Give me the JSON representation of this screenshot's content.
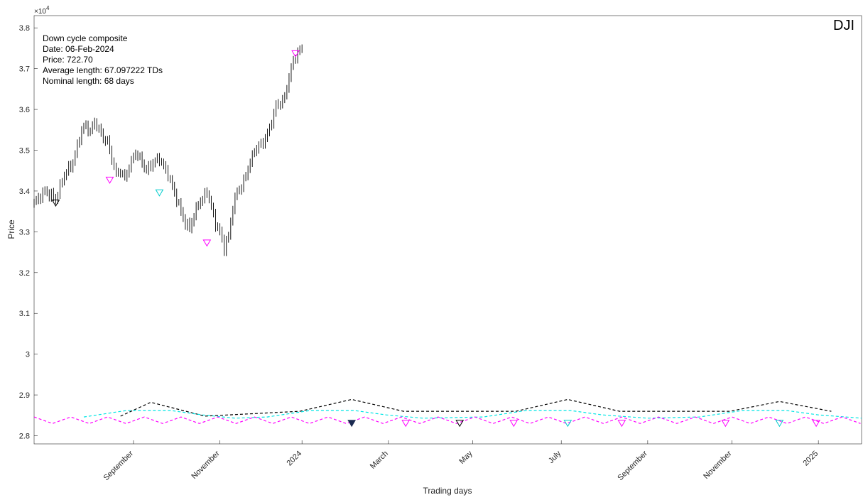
{
  "chart_data": {
    "type": "line",
    "title": "",
    "ticker": "DJI",
    "xlabel": "Trading days",
    "ylabel": "Price",
    "y_exponent_label": "×10",
    "y_exponent_power": "4",
    "ylim": [
      2.78,
      3.83
    ],
    "xlim": [
      0,
      383
    ],
    "grid": false,
    "info_box": {
      "lines": [
        "Down cycle composite",
        "Date: 06-Feb-2024",
        "Price: 722.70",
        "Average length: 67.097222 TDs",
        "Nominal length: 68 days"
      ]
    },
    "y_ticks": [
      {
        "value": 2.8,
        "label": "2.8"
      },
      {
        "value": 2.9,
        "label": "2.9"
      },
      {
        "value": 3.0,
        "label": "3"
      },
      {
        "value": 3.1,
        "label": "3.1"
      },
      {
        "value": 3.2,
        "label": "3.2"
      },
      {
        "value": 3.3,
        "label": "3.3"
      },
      {
        "value": 3.4,
        "label": "3.4"
      },
      {
        "value": 3.5,
        "label": "3.5"
      },
      {
        "value": 3.6,
        "label": "3.6"
      },
      {
        "value": 3.7,
        "label": "3.7"
      },
      {
        "value": 3.8,
        "label": "3.8"
      }
    ],
    "x_ticks": [
      {
        "value": 46,
        "label": "September"
      },
      {
        "value": 86,
        "label": "November"
      },
      {
        "value": 124,
        "label": "2024"
      },
      {
        "value": 164,
        "label": "March"
      },
      {
        "value": 203,
        "label": "May"
      },
      {
        "value": 244,
        "label": "July"
      },
      {
        "value": 284,
        "label": "September"
      },
      {
        "value": 323,
        "label": "November"
      },
      {
        "value": 363,
        "label": "2025"
      }
    ],
    "price_bars": {
      "color": "#000000",
      "anchors": [
        [
          0,
          3.37
        ],
        [
          5,
          3.4
        ],
        [
          10,
          3.38
        ],
        [
          14,
          3.44
        ],
        [
          18,
          3.47
        ],
        [
          20,
          3.51
        ],
        [
          22,
          3.55
        ],
        [
          24,
          3.56
        ],
        [
          26,
          3.545
        ],
        [
          28,
          3.57
        ],
        [
          30,
          3.55
        ],
        [
          32,
          3.53
        ],
        [
          34,
          3.52
        ],
        [
          36,
          3.48
        ],
        [
          38,
          3.44
        ],
        [
          40,
          3.45
        ],
        [
          42,
          3.43
        ],
        [
          44,
          3.46
        ],
        [
          47,
          3.495
        ],
        [
          50,
          3.47
        ],
        [
          52,
          3.45
        ],
        [
          55,
          3.47
        ],
        [
          58,
          3.48
        ],
        [
          60,
          3.46
        ],
        [
          62,
          3.44
        ],
        [
          64,
          3.41
        ],
        [
          66,
          3.38
        ],
        [
          68,
          3.35
        ],
        [
          70,
          3.32
        ],
        [
          72,
          3.31
        ],
        [
          74,
          3.34
        ],
        [
          76,
          3.37
        ],
        [
          78,
          3.38
        ],
        [
          80,
          3.4
        ],
        [
          82,
          3.36
        ],
        [
          84,
          3.32
        ],
        [
          86,
          3.3
        ],
        [
          88,
          3.26
        ],
        [
          90,
          3.29
        ],
        [
          92,
          3.36
        ],
        [
          94,
          3.4
        ],
        [
          96,
          3.41
        ],
        [
          98,
          3.44
        ],
        [
          100,
          3.47
        ],
        [
          102,
          3.5
        ],
        [
          104,
          3.51
        ],
        [
          106,
          3.52
        ],
        [
          108,
          3.54
        ],
        [
          110,
          3.57
        ],
        [
          112,
          3.61
        ],
        [
          114,
          3.615
        ],
        [
          116,
          3.63
        ],
        [
          118,
          3.68
        ],
        [
          120,
          3.72
        ],
        [
          122,
          3.74
        ],
        [
          124,
          3.75
        ]
      ]
    },
    "series": [
      {
        "name": "",
        "color": "#000000",
        "dash": true,
        "points": [
          [
            40,
            2.848
          ],
          [
            54,
            2.882
          ],
          [
            79,
            2.848
          ],
          [
            123,
            2.86
          ],
          [
            147,
            2.889
          ],
          [
            171,
            2.86
          ],
          [
            223,
            2.86
          ],
          [
            247,
            2.889
          ],
          [
            271,
            2.86
          ],
          [
            322,
            2.86
          ],
          [
            345,
            2.884
          ],
          [
            369,
            2.86
          ]
        ]
      },
      {
        "name": "",
        "color": "#00e5e5",
        "dash": true,
        "points": [
          [
            23,
            2.846
          ],
          [
            43,
            2.862
          ],
          [
            63,
            2.862
          ],
          [
            78,
            2.851
          ],
          [
            93,
            2.843
          ],
          [
            108,
            2.846
          ],
          [
            128,
            2.862
          ],
          [
            148,
            2.862
          ],
          [
            163,
            2.851
          ],
          [
            180,
            2.843
          ],
          [
            208,
            2.846
          ],
          [
            228,
            2.862
          ],
          [
            248,
            2.862
          ],
          [
            263,
            2.851
          ],
          [
            284,
            2.843
          ],
          [
            308,
            2.846
          ],
          [
            328,
            2.862
          ],
          [
            348,
            2.862
          ],
          [
            363,
            2.851
          ],
          [
            383,
            2.843
          ]
        ]
      },
      {
        "name": "",
        "color": "#ff00ff",
        "dash": true,
        "wave": {
          "mid": 2.838,
          "amp": 0.008,
          "period": 17
        }
      }
    ],
    "markers": [
      {
        "x": 10,
        "y": 3.371,
        "type": "open",
        "color": "#000000"
      },
      {
        "x": 35,
        "y": 3.427,
        "type": "open",
        "color": "#ff00ff"
      },
      {
        "x": 58,
        "y": 3.396,
        "type": "open",
        "color": "#00cccc"
      },
      {
        "x": 80,
        "y": 3.273,
        "type": "open",
        "color": "#ff00ff"
      },
      {
        "x": 121,
        "y": 3.737,
        "type": "open",
        "color": "#ff00ff"
      },
      {
        "x": 147,
        "y": 2.831,
        "type": "filled",
        "color": "#1a2a50"
      },
      {
        "x": 172,
        "y": 2.831,
        "type": "open",
        "color": "#ff00ff"
      },
      {
        "x": 197,
        "y": 2.831,
        "type": "open",
        "color": "#000000"
      },
      {
        "x": 222,
        "y": 2.831,
        "type": "open",
        "color": "#ff00ff"
      },
      {
        "x": 247,
        "y": 2.831,
        "type": "open",
        "color": "#00cccc"
      },
      {
        "x": 272,
        "y": 2.831,
        "type": "open",
        "color": "#ff00ff"
      },
      {
        "x": 320,
        "y": 2.831,
        "type": "open",
        "color": "#ff00ff"
      },
      {
        "x": 345,
        "y": 2.831,
        "type": "open",
        "color": "#00cccc"
      },
      {
        "x": 362,
        "y": 2.831,
        "type": "open",
        "color": "#ff00ff"
      }
    ]
  }
}
